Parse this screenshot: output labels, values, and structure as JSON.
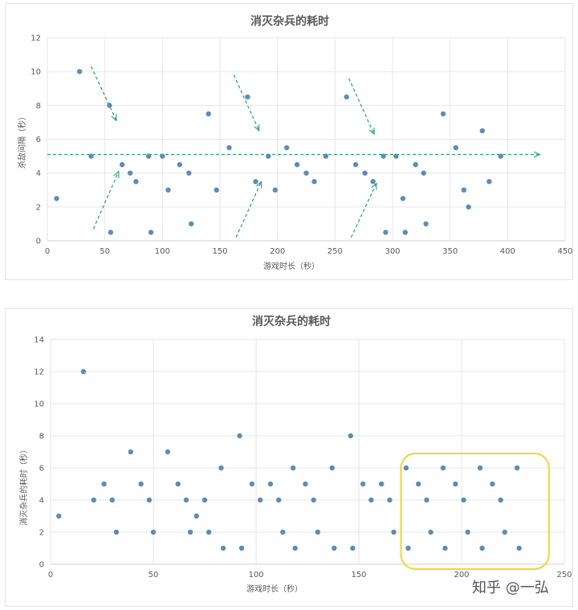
{
  "chart_data": [
    {
      "type": "scatter",
      "title": "消灭杂兵的耗时",
      "xlabel": "游戏时长（秒）",
      "ylabel": "杀敌间隔（秒）",
      "xlim": [
        0,
        450
      ],
      "ylim": [
        0,
        12
      ],
      "xticks": [
        0,
        50,
        100,
        150,
        200,
        250,
        300,
        350,
        400,
        450
      ],
      "yticks": [
        0,
        2,
        4,
        6,
        8,
        10,
        12
      ],
      "color": "#5b8db8",
      "annotation_color": "#2f9e6a",
      "grid": true,
      "points": [
        [
          8,
          2.5
        ],
        [
          28,
          10
        ],
        [
          38,
          5
        ],
        [
          54,
          8
        ],
        [
          55,
          0.5
        ],
        [
          65,
          4.5
        ],
        [
          72,
          4
        ],
        [
          77,
          3.5
        ],
        [
          88,
          5
        ],
        [
          90,
          0.5
        ],
        [
          100,
          5
        ],
        [
          105,
          3
        ],
        [
          115,
          4.5
        ],
        [
          123,
          4
        ],
        [
          125,
          1
        ],
        [
          140,
          7.5
        ],
        [
          147,
          3
        ],
        [
          158,
          5.5
        ],
        [
          174,
          8.5
        ],
        [
          181,
          3.5
        ],
        [
          192,
          5
        ],
        [
          198,
          3
        ],
        [
          208,
          5.5
        ],
        [
          217,
          4.5
        ],
        [
          225,
          4
        ],
        [
          232,
          3.5
        ],
        [
          242,
          5
        ],
        [
          260,
          8.5
        ],
        [
          268,
          4.5
        ],
        [
          276,
          4
        ],
        [
          283,
          3.5
        ],
        [
          292,
          5
        ],
        [
          294,
          0.5
        ],
        [
          303,
          5
        ],
        [
          309,
          2.5
        ],
        [
          311,
          0.5
        ],
        [
          320,
          4.5
        ],
        [
          327,
          4
        ],
        [
          329,
          1
        ],
        [
          344,
          7.5
        ],
        [
          355,
          5.5
        ],
        [
          362,
          3
        ],
        [
          366,
          2
        ],
        [
          378,
          6.5
        ],
        [
          384,
          3.5
        ],
        [
          394,
          5
        ]
      ]
    },
    {
      "type": "scatter",
      "title": "消灭杂兵的耗时",
      "xlabel": "游戏时长（秒）",
      "ylabel": "消灭杂兵的耗时（秒）",
      "xlim": [
        0,
        250
      ],
      "ylim": [
        0,
        14
      ],
      "xticks": [
        0,
        50,
        100,
        150,
        200,
        250
      ],
      "yticks": [
        0,
        2,
        4,
        6,
        8,
        10,
        12,
        14
      ],
      "color": "#5b8db8",
      "highlight_color": "#f2d33b",
      "grid": true,
      "points": [
        [
          4,
          3
        ],
        [
          16,
          12
        ],
        [
          21,
          4
        ],
        [
          26,
          5
        ],
        [
          30,
          4
        ],
        [
          32,
          2
        ],
        [
          39,
          7
        ],
        [
          44,
          5
        ],
        [
          48,
          4
        ],
        [
          50,
          2
        ],
        [
          57,
          7
        ],
        [
          62,
          5
        ],
        [
          66,
          4
        ],
        [
          68,
          2
        ],
        [
          71,
          3
        ],
        [
          75,
          4
        ],
        [
          77,
          2
        ],
        [
          83,
          6
        ],
        [
          84,
          1
        ],
        [
          92,
          8
        ],
        [
          93,
          1
        ],
        [
          98,
          5
        ],
        [
          102,
          4
        ],
        [
          107,
          5
        ],
        [
          111,
          4
        ],
        [
          113,
          2
        ],
        [
          118,
          6
        ],
        [
          119,
          1
        ],
        [
          124,
          5
        ],
        [
          128,
          4
        ],
        [
          130,
          2
        ],
        [
          137,
          6
        ],
        [
          138,
          1
        ],
        [
          146,
          8
        ],
        [
          147,
          1
        ],
        [
          152,
          5
        ],
        [
          156,
          4
        ],
        [
          161,
          5
        ],
        [
          165,
          4
        ],
        [
          167,
          2
        ],
        [
          173,
          6
        ],
        [
          174,
          1
        ],
        [
          179,
          5
        ],
        [
          183,
          4
        ],
        [
          185,
          2
        ],
        [
          191,
          6
        ],
        [
          192,
          1
        ],
        [
          197,
          5
        ],
        [
          201,
          4
        ],
        [
          203,
          2
        ],
        [
          209,
          6
        ],
        [
          210,
          1
        ],
        [
          215,
          5
        ],
        [
          219,
          4
        ],
        [
          221,
          2
        ],
        [
          227,
          6
        ],
        [
          228,
          1
        ]
      ]
    }
  ],
  "watermark": "知乎 @一弘"
}
